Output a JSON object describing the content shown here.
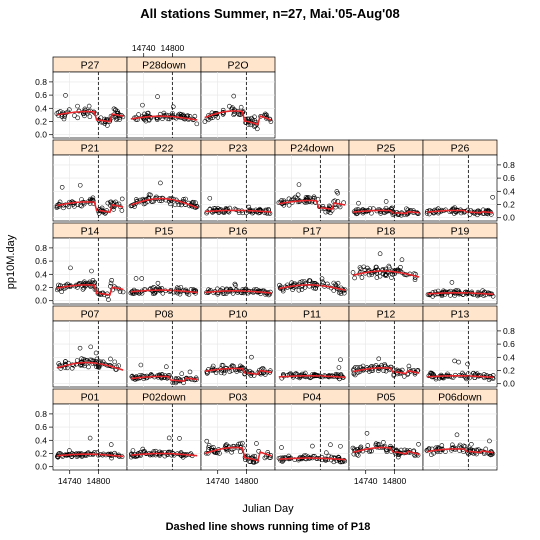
{
  "chart_data": {
    "type": "scatter",
    "title": "All stations Summer, n=27, Mai.'05-Aug'08",
    "subtitle": "Dashed line shows running time of P18",
    "xlabel": "Julian Day",
    "ylabel": "pp10M.day",
    "xlim": [
      14705,
      14860
    ],
    "ylim": [
      -0.05,
      0.95
    ],
    "x_ticks": [
      14740,
      14800
    ],
    "y_ticks": [
      0.0,
      0.2,
      0.4,
      0.6,
      0.8
    ],
    "y_tick_labels": [
      "0.0",
      "0.2",
      "0.4",
      "0.6",
      "0.8"
    ],
    "dashed_line_x": 14800,
    "layout": "lattice 6 columns x 5 rows",
    "grid": true,
    "colors": {
      "strip": "#ffe5cc",
      "points": "#000000",
      "smooth": "#e8262b",
      "dashed": "#000000",
      "grid": "#e6e6e6"
    },
    "panels": [
      {
        "name": "P27",
        "mean": 0.29,
        "amp": 0.06,
        "spread": 0.09,
        "dip": 0.12
      },
      {
        "name": "P28down",
        "mean": 0.23,
        "amp": 0.05,
        "spread": 0.07,
        "dip": 0.0
      },
      {
        "name": "P2O",
        "mean": 0.24,
        "amp": 0.12,
        "spread": 0.08,
        "dip": 0.14
      },
      {
        "name": "P21",
        "mean": 0.17,
        "amp": 0.07,
        "spread": 0.07,
        "dip": 0.12
      },
      {
        "name": "P22",
        "mean": 0.17,
        "amp": 0.12,
        "spread": 0.08,
        "dip": 0.0
      },
      {
        "name": "P23",
        "mean": 0.09,
        "amp": 0.02,
        "spread": 0.05,
        "dip": 0.0
      },
      {
        "name": "P24down",
        "mean": 0.2,
        "amp": 0.06,
        "spread": 0.07,
        "dip": 0.1
      },
      {
        "name": "P25",
        "mean": 0.08,
        "amp": 0.03,
        "spread": 0.05,
        "dip": 0.03
      },
      {
        "name": "P26",
        "mean": 0.08,
        "amp": 0.03,
        "spread": 0.05,
        "dip": 0.02
      },
      {
        "name": "P14",
        "mean": 0.18,
        "amp": 0.06,
        "spread": 0.08,
        "dip": 0.12
      },
      {
        "name": "P15",
        "mean": 0.13,
        "amp": 0.03,
        "spread": 0.06,
        "dip": 0.0
      },
      {
        "name": "P16",
        "mean": 0.12,
        "amp": 0.03,
        "spread": 0.05,
        "dip": 0.0
      },
      {
        "name": "P17",
        "mean": 0.17,
        "amp": 0.07,
        "spread": 0.09,
        "dip": 0.0
      },
      {
        "name": "P18",
        "mean": 0.37,
        "amp": 0.08,
        "spread": 0.1,
        "dip": 0.0
      },
      {
        "name": "P19",
        "mean": 0.1,
        "amp": 0.02,
        "spread": 0.05,
        "dip": 0.0
      },
      {
        "name": "P07",
        "mean": 0.22,
        "amp": 0.1,
        "spread": 0.09,
        "dip": 0.0
      },
      {
        "name": "P08",
        "mean": 0.07,
        "amp": 0.04,
        "spread": 0.04,
        "dip": 0.05
      },
      {
        "name": "P10",
        "mean": 0.18,
        "amp": 0.05,
        "spread": 0.07,
        "dip": 0.06
      },
      {
        "name": "P11",
        "mean": 0.1,
        "amp": 0.02,
        "spread": 0.05,
        "dip": 0.0
      },
      {
        "name": "P12",
        "mean": 0.17,
        "amp": 0.07,
        "spread": 0.07,
        "dip": 0.05
      },
      {
        "name": "P13",
        "mean": 0.1,
        "amp": 0.02,
        "spread": 0.06,
        "dip": 0.0
      },
      {
        "name": "P01",
        "mean": 0.16,
        "amp": 0.03,
        "spread": 0.05,
        "dip": 0.0
      },
      {
        "name": "P02down",
        "mean": 0.17,
        "amp": 0.03,
        "spread": 0.05,
        "dip": 0.0
      },
      {
        "name": "P03",
        "mean": 0.18,
        "amp": 0.11,
        "spread": 0.08,
        "dip": 0.14
      },
      {
        "name": "P04",
        "mean": 0.11,
        "amp": 0.02,
        "spread": 0.05,
        "dip": 0.0
      },
      {
        "name": "P05",
        "mean": 0.2,
        "amp": 0.09,
        "spread": 0.09,
        "dip": 0.05
      },
      {
        "name": "P06down",
        "mean": 0.22,
        "amp": 0.05,
        "spread": 0.07,
        "dip": 0.03
      }
    ]
  }
}
